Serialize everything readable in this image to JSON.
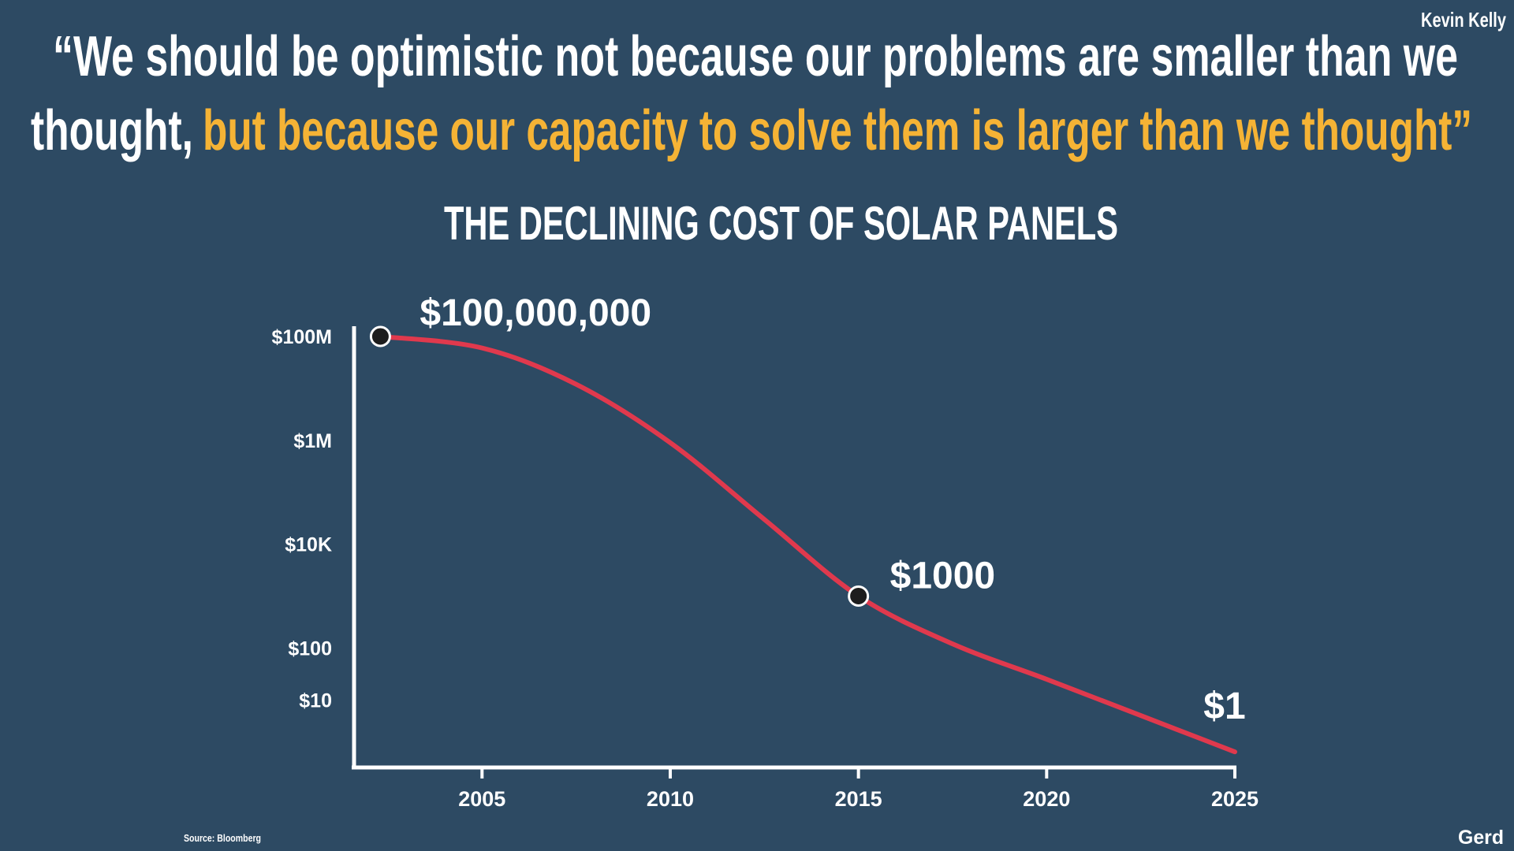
{
  "quote": {
    "line1": "“We should be optimistic not because our problems are smaller than we",
    "line2": "thought,",
    "highlight": "but because our capacity to solve them is larger than we thought”"
  },
  "author": "Kevin Kelly",
  "source": "Source: Bloomberg",
  "brand": "Gerd",
  "chart_data": {
    "type": "line",
    "title": "THE DECLINING COST OF SOLAR PANELS",
    "x": [
      2002.3,
      2005,
      2007.5,
      2010,
      2012.5,
      2015,
      2017.5,
      2020,
      2022.5,
      2025
    ],
    "series": [
      {
        "color": "#e0394d",
        "values": [
          100000000,
          60000000,
          12000000,
          900000,
          30000,
          1000,
          120,
          25,
          5,
          1
        ]
      }
    ],
    "annotations": [
      {
        "x": 2002.3,
        "value": 100000000,
        "label": "$100,000,000",
        "marker": true
      },
      {
        "x": 2015,
        "value": 1000,
        "label": "$1000",
        "marker": true
      },
      {
        "x": 2025,
        "value": 1,
        "label": "$1",
        "marker": false
      }
    ],
    "xlim": [
      2001.6,
      2025
    ],
    "xticks": [
      2005,
      2010,
      2015,
      2020,
      2025
    ],
    "ylim": [
      0.5,
      100000000
    ],
    "log_y": true,
    "yticks": [
      {
        "value": 100000000,
        "label": "$100M"
      },
      {
        "value": 1000000,
        "label": "$1M"
      },
      {
        "value": 10000,
        "label": "$10K"
      },
      {
        "value": 100,
        "label": "$100"
      },
      {
        "value": 10,
        "label": "$10"
      }
    ]
  }
}
